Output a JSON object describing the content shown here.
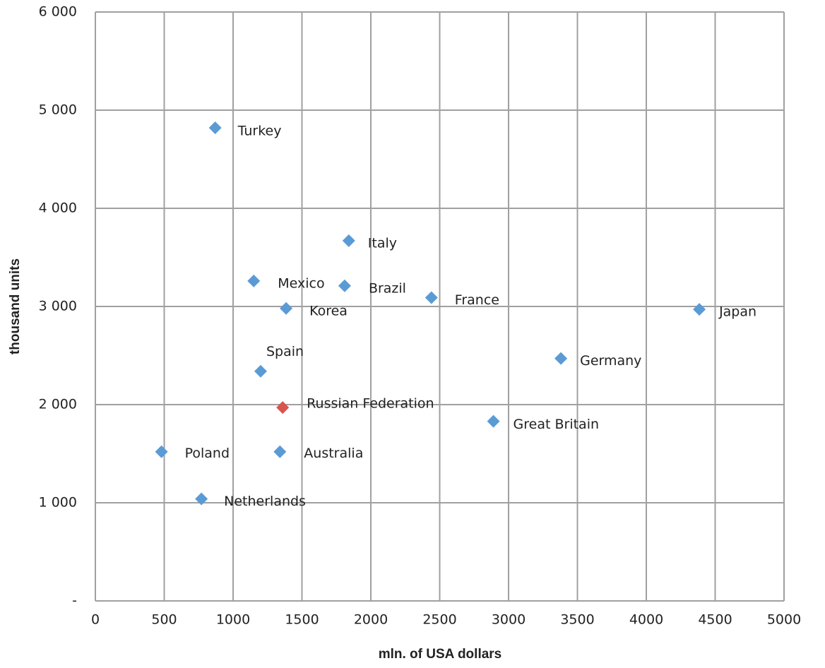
{
  "chart_data": {
    "type": "scatter",
    "x_label": "mln. of USA dollars",
    "y_label": "thousand units",
    "labels": [
      "Turkey",
      "Italy",
      "Mexico",
      "Brazil",
      "France",
      "Korea",
      "Japan",
      "Germany",
      "Spain",
      "Russian Federation",
      "Great Britain",
      "Poland",
      "Australia",
      "Netherlands"
    ],
    "x": [
      870,
      1840,
      1150,
      1810,
      2440,
      1385,
      4385,
      3380,
      1200,
      1360,
      2890,
      480,
      1340,
      770
    ],
    "values": [
      4820,
      3670,
      3260,
      3210,
      3090,
      2980,
      2970,
      2470,
      2340,
      1970,
      1830,
      1520,
      1520,
      1040
    ],
    "colors": [
      "#5b9bd5",
      "#5b9bd5",
      "#5b9bd5",
      "#5b9bd5",
      "#5b9bd5",
      "#5b9bd5",
      "#5b9bd5",
      "#5b9bd5",
      "#5b9bd5",
      "#d9534f",
      "#5b9bd5",
      "#5b9bd5",
      "#5b9bd5",
      "#5b9bd5"
    ],
    "xlim": [
      0,
      5000
    ],
    "xticks": [
      0,
      500,
      1000,
      1500,
      2000,
      2500,
      3000,
      3500,
      4000,
      4500,
      5000
    ],
    "ylim": [
      0,
      6000
    ],
    "yticks": [
      {
        "value": 0,
        "label": "-"
      },
      {
        "value": 1000,
        "label": "1 000"
      },
      {
        "value": 2000,
        "label": "2 000"
      },
      {
        "value": 3000,
        "label": "3 000"
      },
      {
        "value": 4000,
        "label": "4 000"
      },
      {
        "value": 5000,
        "label": "5 000"
      },
      {
        "value": 6000,
        "label": "6 000"
      }
    ],
    "grid": true
  }
}
